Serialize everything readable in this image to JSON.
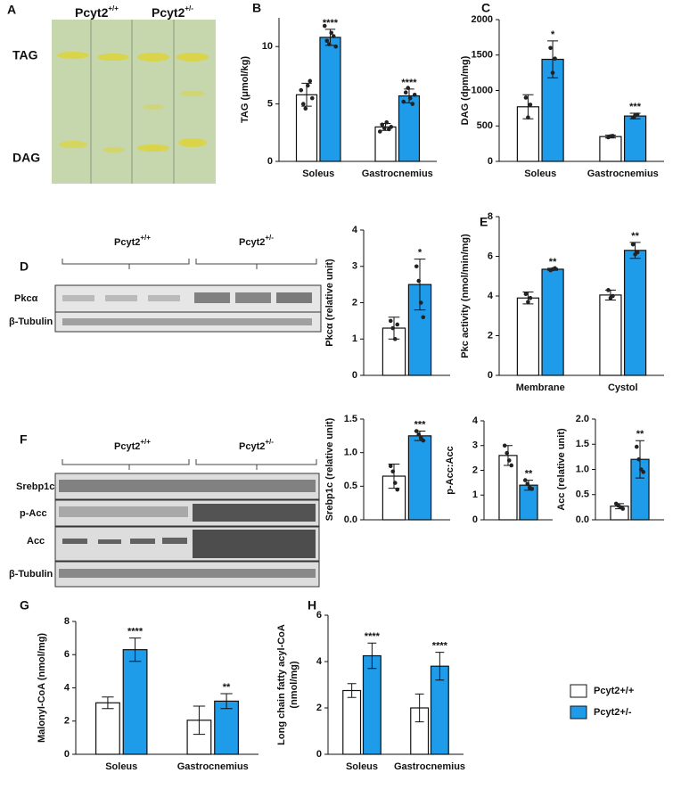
{
  "letters": [
    "A",
    "B",
    "C",
    "D",
    "E",
    "F",
    "G",
    "H"
  ],
  "tlc": {
    "genotypes": [
      {
        "base": "Pcyt2",
        "sup": "+/+"
      },
      {
        "base": "Pcyt2",
        "sup": "+/-"
      }
    ],
    "rows": [
      "TAG",
      "DAG"
    ]
  },
  "blot_d": {
    "genotypes": [
      {
        "base": "Pcyt2",
        "sup": "+/+"
      },
      {
        "base": "Pcyt2",
        "sup": "+/-"
      }
    ],
    "rows": [
      "Pkcα",
      "β-Tubulin"
    ]
  },
  "blot_f": {
    "genotypes": [
      {
        "base": "Pcyt2",
        "sup": "+/+"
      },
      {
        "base": "Pcyt2",
        "sup": "+/-"
      }
    ],
    "rows": [
      "Srebp1c",
      "p-Acc",
      "Acc",
      "β-Tubulin"
    ]
  },
  "legend": {
    "series": [
      {
        "name": "Pcyt2+/+",
        "color": "#ffffff"
      },
      {
        "name": "Pcyt2+/-",
        "color": "#1e9be9"
      }
    ]
  },
  "chart_data": [
    {
      "type": "bar",
      "ylabel": "TAG (μmol/kg)",
      "categories": [
        "Soleus",
        "Gastrocnemius"
      ],
      "ylim": [
        0,
        12.5
      ],
      "yticks": [
        0,
        5,
        10
      ],
      "annotations": [
        "****",
        "****"
      ],
      "series": [
        {
          "name": "Pcyt2+/+",
          "color": "#ffffff",
          "values": [
            5.8,
            3.0
          ],
          "errors": [
            1.0,
            0.3
          ],
          "points": [
            [
              6.2,
              5.0,
              4.6,
              6.6,
              7.0,
              5.5
            ],
            [
              2.6,
              3.2,
              2.9,
              3.4,
              2.8,
              3.0
            ]
          ]
        },
        {
          "name": "Pcyt2+/-",
          "color": "#1e9be9",
          "values": [
            10.8,
            5.7
          ],
          "errors": [
            0.7,
            0.6
          ],
          "points": [
            [
              11.8,
              10.5,
              10.2,
              11.2,
              10.9,
              10.0
            ],
            [
              5.2,
              6.0,
              6.4,
              5.5,
              5.0,
              5.8
            ]
          ]
        }
      ]
    },
    {
      "type": "bar",
      "ylabel": "DAG (dpm/mg)",
      "categories": [
        "Soleus",
        "Gastrocnemius"
      ],
      "ylim": [
        0,
        2000
      ],
      "yticks": [
        0,
        500,
        1000,
        1500,
        2000
      ],
      "annotations": [
        "*",
        "***"
      ],
      "series": [
        {
          "name": "Pcyt2+/+",
          "color": "#ffffff",
          "values": [
            770,
            350
          ],
          "errors": [
            170,
            20
          ],
          "points": [
            [
              900,
              620,
              800
            ],
            [
              340,
              355,
              360
            ]
          ]
        },
        {
          "name": "Pcyt2+/-",
          "color": "#1e9be9",
          "values": [
            1440,
            640
          ],
          "errors": [
            260,
            40
          ],
          "points": [
            [
              1600,
              1250,
              1450
            ],
            [
              620,
              650,
              660
            ]
          ]
        }
      ]
    },
    {
      "type": "bar",
      "ylabel": "Pkcα (relative unit)",
      "ylim": [
        0,
        4
      ],
      "yticks": [
        0,
        1,
        2,
        3,
        4
      ],
      "annotations": [
        "*"
      ],
      "series": [
        {
          "name": "Pcyt2+/+",
          "color": "#ffffff",
          "values": [
            1.3
          ],
          "errors": [
            0.3
          ],
          "points": [
            [
              1.5,
              1.3,
              1.0,
              1.4
            ]
          ]
        },
        {
          "name": "Pcyt2+/-",
          "color": "#1e9be9",
          "values": [
            2.5
          ],
          "errors": [
            0.7
          ],
          "points": [
            [
              3.0,
              2.6,
              2.0,
              1.6
            ]
          ]
        }
      ]
    },
    {
      "type": "bar",
      "ylabel": "Pkc activity (nmol/min/mg)",
      "categories": [
        "Membrane",
        "Cystol"
      ],
      "ylim": [
        0,
        8
      ],
      "yticks": [
        0,
        2,
        4,
        6,
        8
      ],
      "annotations": [
        "**",
        "**"
      ],
      "series": [
        {
          "name": "Pcyt2+/+",
          "color": "#ffffff",
          "values": [
            3.9,
            4.05
          ],
          "errors": [
            0.3,
            0.25
          ],
          "points": [
            [
              4.1,
              3.7,
              3.9
            ],
            [
              4.3,
              3.9,
              4.0
            ]
          ]
        },
        {
          "name": "Pcyt2+/-",
          "color": "#1e9be9",
          "values": [
            5.35,
            6.3
          ],
          "errors": [
            0.05,
            0.4
          ],
          "points": [
            [
              5.3,
              5.35,
              5.4
            ],
            [
              6.6,
              6.1,
              6.2
            ]
          ]
        }
      ]
    },
    {
      "type": "bar",
      "ylabel": "Srebp1c (relative unit)",
      "ylim": [
        0,
        1.5
      ],
      "yticks": [
        {
          "value": 0,
          "label": "0.0"
        },
        {
          "value": 0.5,
          "label": "0.5"
        },
        {
          "value": 1,
          "label": "1.0"
        },
        {
          "value": 1.5,
          "label": "1.5"
        }
      ],
      "annotations": [
        "***"
      ],
      "series": [
        {
          "name": "Pcyt2+/+",
          "color": "#ffffff",
          "values": [
            0.65
          ],
          "errors": [
            0.18
          ],
          "points": [
            [
              0.8,
              0.72,
              0.55,
              0.45
            ]
          ]
        },
        {
          "name": "Pcyt2+/-",
          "color": "#1e9be9",
          "values": [
            1.25
          ],
          "errors": [
            0.07
          ],
          "points": [
            [
              1.32,
              1.27,
              1.22,
              1.18
            ]
          ]
        }
      ]
    },
    {
      "type": "bar",
      "ylabel": "p-Acc:Acc",
      "ylim": [
        0,
        4
      ],
      "yticks": [
        0,
        1,
        2,
        3,
        4
      ],
      "annotations": [
        "**"
      ],
      "series": [
        {
          "name": "Pcyt2+/+",
          "color": "#ffffff",
          "values": [
            2.6
          ],
          "errors": [
            0.4
          ],
          "points": [
            [
              3.0,
              2.7,
              2.4,
              2.2
            ]
          ]
        },
        {
          "name": "Pcyt2+/-",
          "color": "#1e9be9",
          "values": [
            1.4
          ],
          "errors": [
            0.2
          ],
          "points": [
            [
              1.6,
              1.45,
              1.3,
              1.25
            ]
          ]
        }
      ]
    },
    {
      "type": "bar",
      "ylabel": "Acc (relative unit)",
      "ylim": [
        0,
        2
      ],
      "yticks": [
        {
          "value": 0,
          "label": "0.0"
        },
        {
          "value": 0.5,
          "label": "0.5"
        },
        {
          "value": 1,
          "label": "1.0"
        },
        {
          "value": 1.5,
          "label": "1.5"
        },
        {
          "value": 2,
          "label": "2.0"
        }
      ],
      "annotations": [
        "**"
      ],
      "series": [
        {
          "name": "Pcyt2+/+",
          "color": "#ffffff",
          "values": [
            0.27
          ],
          "errors": [
            0.05
          ],
          "points": [
            [
              0.32,
              0.28,
              0.25,
              0.22
            ]
          ]
        },
        {
          "name": "Pcyt2+/-",
          "color": "#1e9be9",
          "values": [
            1.2
          ],
          "errors": [
            0.37
          ],
          "points": [
            [
              1.45,
              1.2,
              1.0,
              0.95
            ]
          ]
        }
      ]
    },
    {
      "type": "bar",
      "ylabel": "Malonyl-CoA (nmol/mg)",
      "categories": [
        "Soleus",
        "Gastrocnemius"
      ],
      "ylim": [
        0,
        8
      ],
      "yticks": [
        0,
        2,
        4,
        6,
        8
      ],
      "annotations": [
        "****",
        "**"
      ],
      "series": [
        {
          "name": "Pcyt2+/+",
          "color": "#ffffff",
          "values": [
            3.1,
            2.05
          ],
          "errors": [
            0.35,
            0.85
          ]
        },
        {
          "name": "Pcyt2+/-",
          "color": "#1e9be9",
          "values": [
            6.3,
            3.2
          ],
          "errors": [
            0.7,
            0.45
          ]
        }
      ]
    },
    {
      "type": "bar",
      "ylabel": [
        "Long chain fatty acyl-CoA",
        "(nmol/mg)"
      ],
      "categories": [
        "Soleus",
        "Gastrocnemius"
      ],
      "ylim": [
        0,
        6
      ],
      "yticks": [
        0,
        2,
        4,
        6
      ],
      "annotations": [
        "****",
        "****"
      ],
      "series": [
        {
          "name": "Pcyt2+/+",
          "color": "#ffffff",
          "values": [
            2.75,
            2.0
          ],
          "errors": [
            0.3,
            0.6
          ]
        },
        {
          "name": "Pcyt2+/-",
          "color": "#1e9be9",
          "values": [
            4.25,
            3.8
          ],
          "errors": [
            0.55,
            0.6
          ]
        }
      ]
    }
  ]
}
